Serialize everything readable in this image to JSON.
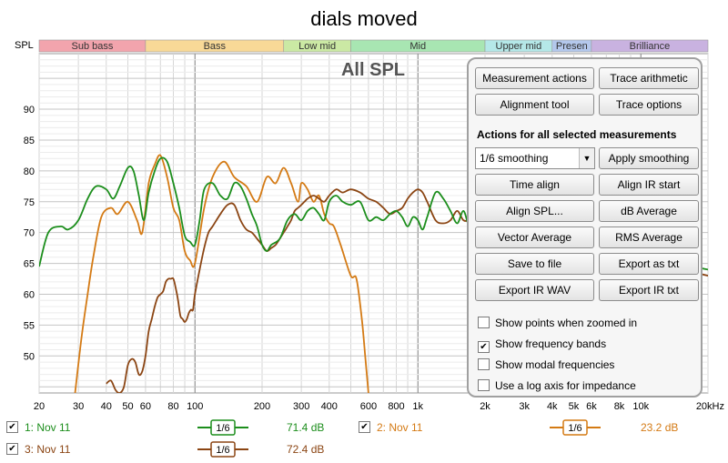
{
  "window": {
    "title": "dials moved"
  },
  "chart_data": {
    "type": "line",
    "title": "dials moved",
    "subtitle": "All SPL",
    "ylabel": "SPL",
    "xscale": "log",
    "xlim": [
      20,
      20000
    ],
    "ylim": [
      44,
      99
    ],
    "x_ticks": [
      20,
      30,
      40,
      50,
      60,
      80,
      100,
      200,
      300,
      400,
      600,
      800,
      1000,
      2000,
      3000,
      4000,
      5000,
      6000,
      8000,
      10000,
      20000
    ],
    "x_tick_labels": [
      "20",
      "30",
      "40",
      "50",
      "60",
      "80",
      "100",
      "200",
      "300",
      "400",
      "600",
      "800",
      "1k",
      "2k",
      "3k",
      "4k",
      "5k",
      "6k",
      "8k",
      "10k",
      "20kHz"
    ],
    "y_ticks": [
      50,
      55,
      60,
      65,
      70,
      75,
      80,
      85,
      90
    ],
    "y_tick_labels": [
      "50",
      "55",
      "60",
      "65",
      "70",
      "75",
      "80",
      "85",
      "90"
    ],
    "grid": true,
    "bands": [
      {
        "label": "Sub bass",
        "start": 20,
        "end": 60,
        "color": "#f2a4ad"
      },
      {
        "label": "Bass",
        "start": 60,
        "end": 250,
        "color": "#f8d997"
      },
      {
        "label": "Low mid",
        "start": 250,
        "end": 500,
        "color": "#cbe9a4"
      },
      {
        "label": "Mid",
        "start": 500,
        "end": 2000,
        "color": "#a8e6b2"
      },
      {
        "label": "Upper mid",
        "start": 2000,
        "end": 4000,
        "color": "#b5e8e8"
      },
      {
        "label": "Presen",
        "start": 4000,
        "end": 6000,
        "color": "#b4c8ec"
      },
      {
        "label": "Brilliance",
        "start": 6000,
        "end": 20000,
        "color": "#c9b2e0"
      }
    ],
    "series": [
      {
        "name": "1: Nov 11",
        "color": "#1c8e1c",
        "x": [
          20,
          22,
          25,
          27,
          30,
          33,
          36,
          40,
          43,
          46,
          50,
          53,
          56,
          59,
          62,
          66,
          70,
          75,
          80,
          85,
          90,
          95,
          100,
          105,
          110,
          120,
          130,
          140,
          150,
          160,
          170,
          180,
          190,
          200,
          210,
          220,
          240,
          260,
          280,
          300,
          320,
          340,
          360,
          380,
          400,
          430,
          460,
          500,
          550,
          600,
          650,
          700,
          750,
          800,
          850,
          900,
          950,
          1000,
          1050,
          1100,
          1200,
          1300,
          1400,
          1500,
          1600,
          1700,
          1800,
          1900,
          2000,
          20000
        ],
        "y": [
          64.5,
          70,
          71,
          70.5,
          72,
          75.5,
          77.5,
          77,
          75.5,
          77.5,
          80.5,
          80,
          76,
          72,
          76.5,
          80,
          82,
          81.5,
          78,
          74,
          69.5,
          68.5,
          68,
          72,
          77,
          78,
          76,
          75.5,
          78,
          77.5,
          75.5,
          73,
          71,
          68,
          67,
          68,
          69,
          72,
          73,
          72,
          73.5,
          74,
          73,
          72,
          75,
          76,
          75,
          74.5,
          75,
          72,
          72.5,
          72,
          73,
          73.5,
          72.5,
          71,
          72.5,
          72,
          70.5,
          72.5,
          76.5,
          75.5,
          73.5,
          71.5,
          73.5,
          71,
          72,
          71,
          71.5,
          64
        ]
      },
      {
        "name": "2: Nov 11",
        "color": "#d47a14",
        "x": [
          29,
          31,
          33,
          35,
          38,
          42,
          45,
          50,
          55,
          58,
          62,
          66,
          70,
          75,
          80,
          85,
          90,
          95,
          100,
          110,
          120,
          135,
          150,
          170,
          190,
          210,
          230,
          250,
          270,
          290,
          300,
          320,
          340,
          360,
          380,
          400,
          420,
          450,
          500,
          530,
          560,
          580,
          600
        ],
        "y": [
          44,
          53,
          60,
          66,
          72.5,
          74,
          73,
          75,
          72,
          70,
          78,
          81,
          82.5,
          79,
          74,
          72,
          67,
          65.5,
          65,
          74,
          79,
          81.5,
          79,
          77.5,
          75,
          79,
          78,
          80.5,
          78,
          75,
          78,
          77,
          75,
          76,
          73,
          71.5,
          71,
          68,
          63,
          62.5,
          56,
          50,
          44
        ]
      },
      {
        "name": "3: Nov 11",
        "color": "#8b4513",
        "x": [
          40,
          42,
          44,
          46,
          48,
          50,
          52,
          54,
          56,
          58,
          60,
          62,
          64,
          66,
          68,
          70,
          72,
          74,
          76,
          78,
          80,
          82,
          84,
          86,
          88,
          90,
          92,
          94,
          96,
          98,
          100,
          105,
          110,
          115,
          120,
          130,
          140,
          150,
          160,
          170,
          180,
          190,
          200,
          210,
          220,
          230,
          240,
          250,
          260,
          270,
          280,
          290,
          300,
          310,
          320,
          340,
          360,
          380,
          400,
          430,
          460,
          500,
          550,
          600,
          650,
          700,
          750,
          800,
          850,
          900,
          950,
          1000,
          1050,
          1100,
          1200,
          1300,
          1400,
          1500,
          1600,
          1700,
          1800,
          1900,
          2000,
          20000
        ],
        "y": [
          45.5,
          46,
          44.5,
          44,
          45,
          48.5,
          49.5,
          49,
          47,
          47.5,
          50,
          54,
          56,
          58,
          59.5,
          60,
          60.5,
          62,
          62.5,
          62.5,
          62.5,
          61,
          59,
          56.5,
          56,
          55.5,
          56,
          57,
          57.5,
          57.5,
          60,
          64,
          67.5,
          70,
          71,
          73,
          74.5,
          74.5,
          72,
          70.5,
          70,
          69,
          68,
          67,
          67.5,
          68,
          69,
          70,
          71,
          72,
          73.5,
          74,
          74.5,
          75,
          75.5,
          76,
          75.5,
          75,
          76,
          77,
          76.5,
          77,
          76.5,
          75.5,
          75,
          74,
          73,
          73.5,
          74,
          75.5,
          76.5,
          77,
          76.5,
          75,
          72,
          71.5,
          72,
          73.5,
          72,
          72,
          72.5,
          71.5,
          71.5,
          63
        ]
      }
    ]
  },
  "panel": {
    "buttons": {
      "measurement_actions": "Measurement actions",
      "trace_arithmetic": "Trace arithmetic",
      "alignment_tool": "Alignment tool",
      "trace_options": "Trace options",
      "apply_smoothing": "Apply smoothing",
      "time_align": "Time align",
      "align_ir_start": "Align IR start",
      "align_spl": "Align SPL...",
      "db_average": "dB Average",
      "vector_average": "Vector Average",
      "rms_average": "RMS Average",
      "save_to_file": "Save to file",
      "export_as_txt": "Export as txt",
      "export_ir_wav": "Export IR WAV",
      "export_ir_txt": "Export IR txt"
    },
    "section_title": "Actions for all selected measurements",
    "smoothing_select": "1/6 smoothing",
    "options": [
      {
        "label": "Show points when zoomed in",
        "checked": false
      },
      {
        "label": "Show frequency bands",
        "checked": true
      },
      {
        "label": "Show modal frequencies",
        "checked": false
      },
      {
        "label": "Use a log axis for impedance",
        "checked": false
      }
    ]
  },
  "legend": {
    "items": [
      {
        "label": "1: Nov 11",
        "smoothing": "1/6",
        "value": "71.4 dB",
        "checked": true,
        "color": "#1c8e1c"
      },
      {
        "label": "2: Nov 11",
        "smoothing": "1/6",
        "value": "23.2 dB",
        "checked": true,
        "color": "#d47a14"
      },
      {
        "label": "3: Nov 11",
        "smoothing": "1/6",
        "value": "72.4 dB",
        "checked": true,
        "color": "#8b4513"
      }
    ]
  }
}
